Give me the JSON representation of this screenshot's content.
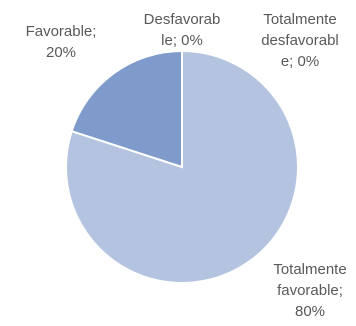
{
  "chart_data": {
    "type": "pie",
    "title": "",
    "start_angle_deg": 0,
    "direction": "clockwise",
    "slices": [
      {
        "category": "Totalmente favorable",
        "value": 80,
        "label_lines": [
          "Totalmente",
          "favorable;",
          "80%"
        ],
        "color": "#b4c4e0"
      },
      {
        "category": "Favorable",
        "value": 20,
        "label_lines": [
          "Favorable;",
          "20%"
        ],
        "color": "#7f9bcb"
      },
      {
        "category": "Desfavorable",
        "value": 0,
        "label_lines": [
          "Desfavorab",
          "le; 0%"
        ],
        "color": "#4f6fa8"
      },
      {
        "category": "Totalmente desfavorable",
        "value": 0,
        "label_lines": [
          "Totalmente",
          "desfavorabl",
          "e; 0%"
        ],
        "color": "#3d5a94"
      }
    ],
    "legend": "none"
  }
}
